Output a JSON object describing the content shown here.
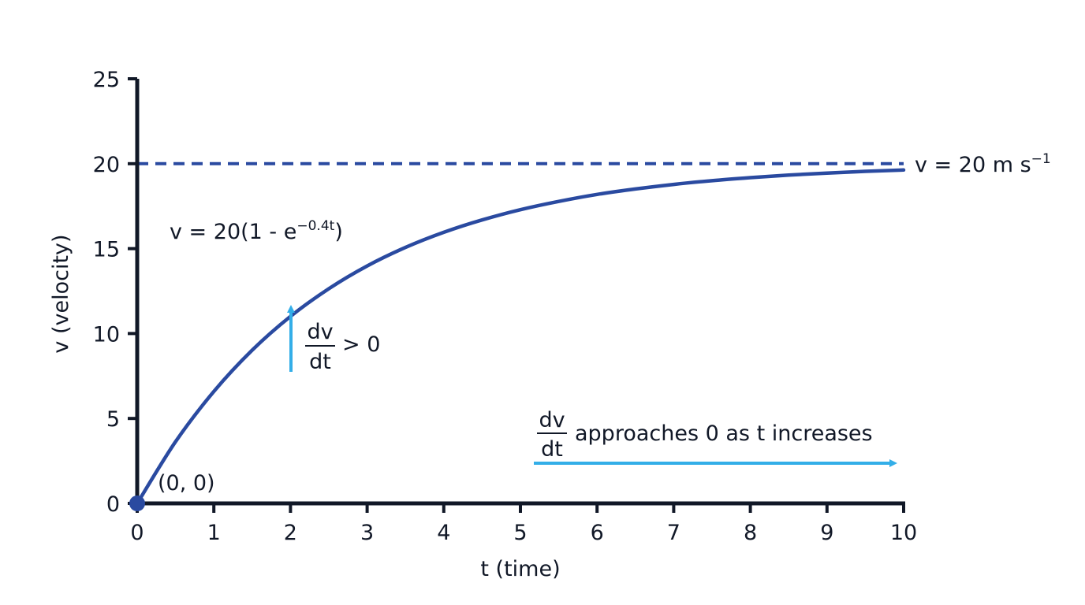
{
  "chart_data": {
    "type": "line",
    "xlabel": "t (time)",
    "ylabel": "v (velocity)",
    "xlim": [
      0,
      10
    ],
    "ylim": [
      0,
      25
    ],
    "x_ticks": [
      "0",
      "1",
      "2",
      "3",
      "4",
      "5",
      "6",
      "7",
      "8",
      "9",
      "10"
    ],
    "y_ticks": [
      "0",
      "5",
      "10",
      "15",
      "20",
      "25"
    ],
    "grid": false,
    "series": [
      {
        "x": [
          0,
          0.5,
          1,
          1.5,
          2,
          2.5,
          3,
          3.5,
          4,
          4.5,
          5,
          5.5,
          6,
          6.5,
          7,
          7.5,
          8,
          8.5,
          9,
          9.5,
          10
        ],
        "y": [
          0,
          3.63,
          6.59,
          9.02,
          11.01,
          12.64,
          13.98,
          15.07,
          15.96,
          16.69,
          17.29,
          17.78,
          18.19,
          18.51,
          18.78,
          19.0,
          19.18,
          19.33,
          19.45,
          19.55,
          19.63
        ]
      }
    ],
    "asymptote": {
      "y": 20,
      "label_main": "v = 20 m s",
      "label_sup": "−1"
    },
    "curve_label": {
      "main": "v = 20(1 - e",
      "sup": "−0.4t",
      "close": ")"
    },
    "origin_point": {
      "x": 0,
      "y": 0,
      "label": "(0, 0)"
    },
    "annotations": {
      "slope_positive": {
        "numerator": "dv",
        "denominator": "dt",
        "rest": "> 0"
      },
      "slope_approach": {
        "numerator": "dv",
        "denominator": "dt",
        "rest": "approaches 0 as t increases"
      }
    },
    "colors": {
      "curve": "#2a4aa0",
      "asymptote": "#2a4aa0",
      "arrow": "#33aee8",
      "axis": "#111827",
      "point": "#2a4aa0"
    }
  }
}
